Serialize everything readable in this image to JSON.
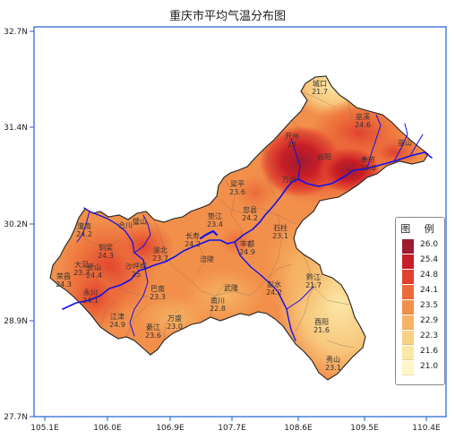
{
  "title": "重庆市平均气温分布图",
  "axes": {
    "x_ticks": [
      "105.1E",
      "106.0E",
      "106.9E",
      "107.7E",
      "108.6E",
      "109.5E",
      "110.4E"
    ],
    "y_ticks": [
      "32.7N",
      "31.4N",
      "30.2N",
      "28.9N",
      "27.7N"
    ]
  },
  "legend": {
    "title": "图 例",
    "items": [
      {
        "label": "26.0",
        "color": "#9e1b30"
      },
      {
        "label": "25.4",
        "color": "#c81e27"
      },
      {
        "label": "24.8",
        "color": "#e0402e"
      },
      {
        "label": "24.1",
        "color": "#ec6a3a"
      },
      {
        "label": "23.5",
        "color": "#f2904b"
      },
      {
        "label": "22.9",
        "color": "#f6b465"
      },
      {
        "label": "22.3",
        "color": "#f9d186"
      },
      {
        "label": "21.6",
        "color": "#fbe7a6"
      },
      {
        "label": "21.0",
        "color": "#fdf6c6"
      }
    ]
  },
  "cities": [
    {
      "name": "城口",
      "temp": "21.7"
    },
    {
      "name": "巫溪",
      "temp": "24.6"
    },
    {
      "name": "开州",
      "temp": "26"
    },
    {
      "name": "巫山",
      "temp": ""
    },
    {
      "name": "云阳",
      "temp": ""
    },
    {
      "name": "奉节",
      "temp": "25.6"
    },
    {
      "name": "万州",
      "temp": ""
    },
    {
      "name": "梁平",
      "temp": "23.6"
    },
    {
      "name": "垫江",
      "temp": "23.4"
    },
    {
      "name": "忠县",
      "temp": "24.2"
    },
    {
      "name": "石柱",
      "temp": "23.1"
    },
    {
      "name": "长寿",
      "temp": "24.2"
    },
    {
      "name": "丰都",
      "temp": "24.9"
    },
    {
      "name": "涪陵",
      "temp": ""
    },
    {
      "name": "潼南",
      "temp": "24.2"
    },
    {
      "name": "合川",
      "temp": ""
    },
    {
      "name": "铜梁",
      "temp": "24.3"
    },
    {
      "name": "璧山",
      "temp": ""
    },
    {
      "name": "渝北",
      "temp": "23.7"
    },
    {
      "name": "大足",
      "temp": "23.2"
    },
    {
      "name": "荣昌",
      "temp": "24.3"
    },
    {
      "name": "永川",
      "temp": "24.1"
    },
    {
      "name": "壁山",
      "temp": "24.4"
    },
    {
      "name": "沙坪坝",
      "temp": "25"
    },
    {
      "name": "巴南",
      "temp": "23.3"
    },
    {
      "name": "江津",
      "temp": "24.9"
    },
    {
      "name": "綦江",
      "temp": "23.6"
    },
    {
      "name": "万盛",
      "temp": "23.0"
    },
    {
      "name": "南川",
      "temp": "22.8"
    },
    {
      "name": "武隆",
      "temp": ""
    },
    {
      "name": "彭水",
      "temp": "24.2"
    },
    {
      "name": "黔江",
      "temp": "21.7"
    },
    {
      "name": "酉阳",
      "temp": "21.6"
    },
    {
      "name": "秀山",
      "temp": "23.1"
    }
  ]
}
